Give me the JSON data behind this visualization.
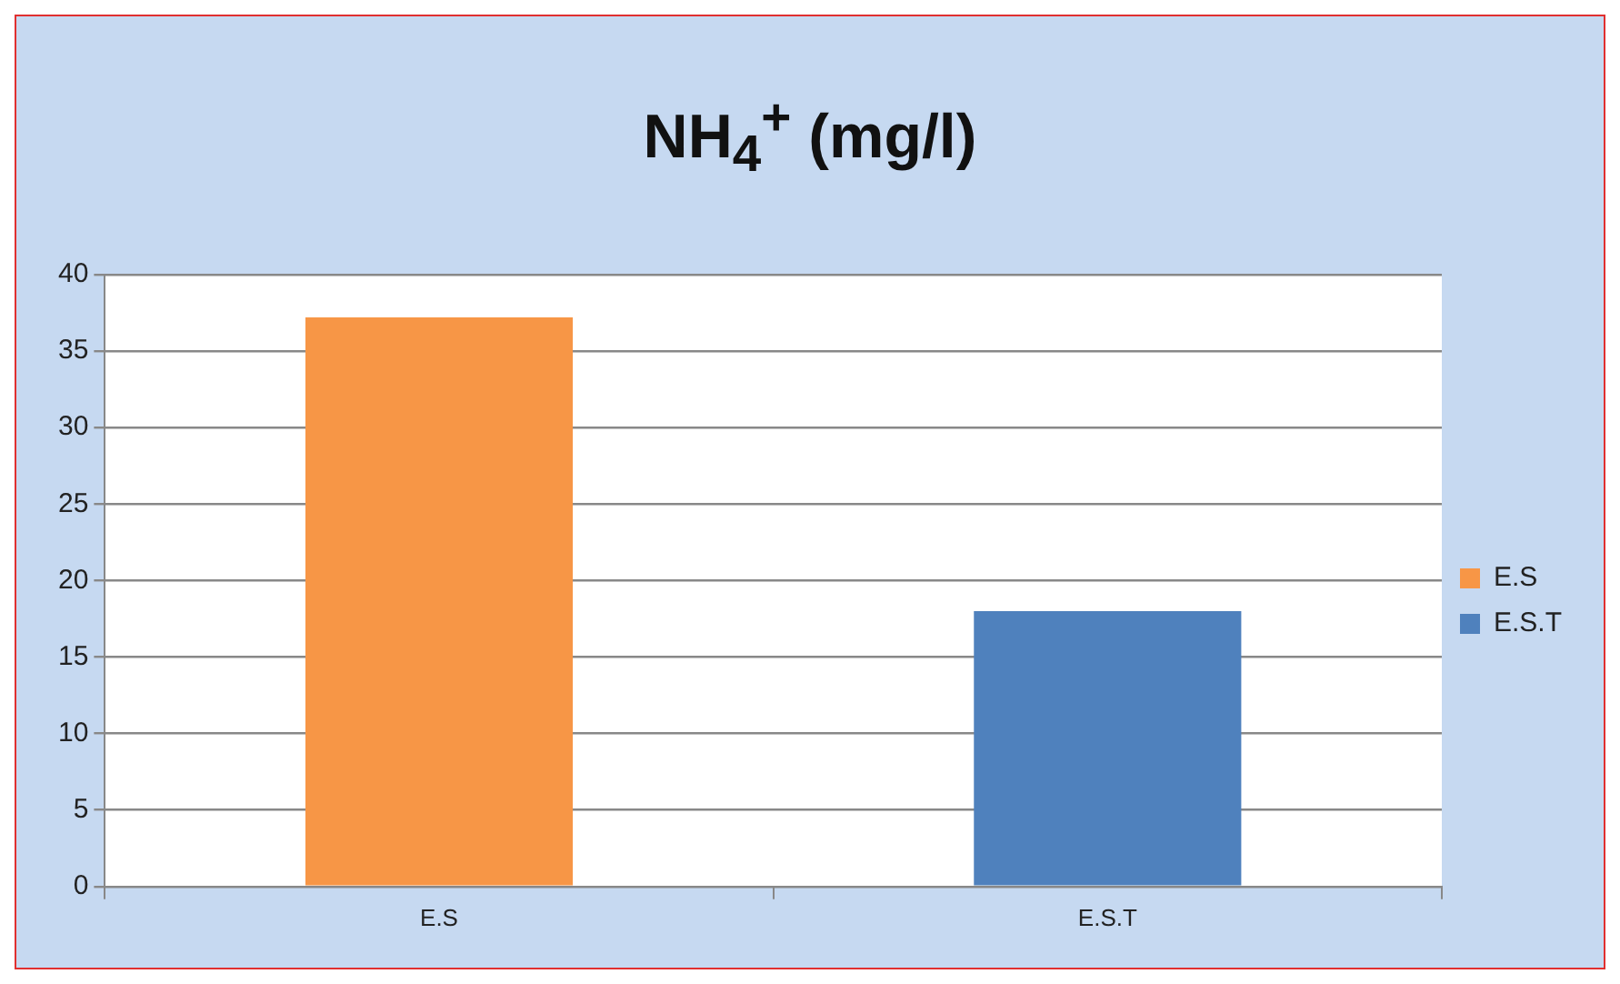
{
  "chart_data": {
    "type": "bar",
    "title": "NH$_{4}$$^{+}$ (mg/l)",
    "categories": [
      "E.S",
      "E.S.T"
    ],
    "series": [
      {
        "name": "E.S",
        "color": "#f79646",
        "values": [
          37.2,
          null
        ]
      },
      {
        "name": "E.S.T",
        "color": "#4f81bd",
        "values": [
          null,
          18
        ]
      }
    ],
    "ylim": [
      0,
      40
    ],
    "yticks": [
      0,
      5,
      10,
      15,
      20,
      25,
      30,
      35,
      40
    ],
    "grid": "y",
    "legend": "right"
  }
}
